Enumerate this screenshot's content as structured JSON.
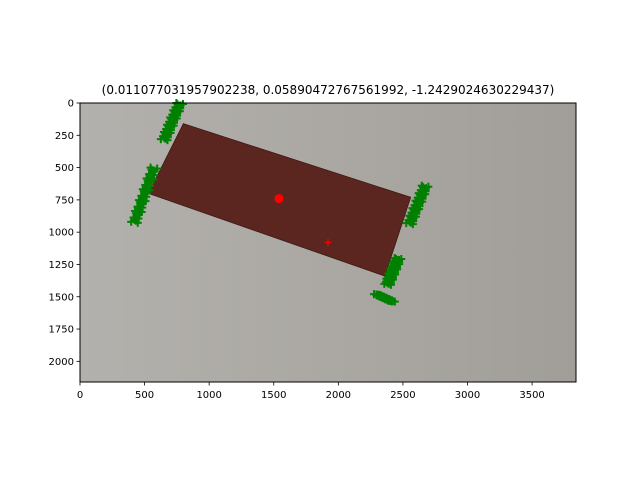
{
  "chart_data": {
    "type": "scatter",
    "title": "(0.011077031957902238, 0.05890472767561992, -1.2429024630229437)",
    "xlabel": "",
    "ylabel": "",
    "xlim": [
      0,
      3840
    ],
    "ylim": [
      2160,
      0
    ],
    "y_inverted": true,
    "grid": false,
    "legend": "none",
    "x_ticks": [
      0,
      500,
      1000,
      1500,
      2000,
      2500,
      3000,
      3500
    ],
    "y_ticks": [
      0,
      250,
      500,
      750,
      1000,
      1250,
      1500,
      1750,
      2000
    ],
    "background_image": {
      "description_colors": {
        "backdrop": "#a9a6a1",
        "box": "#5c2620",
        "box_edge": "#3f1713"
      },
      "box_corners": [
        [
          800,
          160
        ],
        [
          2560,
          730
        ],
        [
          2360,
          1340
        ],
        [
          530,
          700
        ]
      ]
    },
    "series": [
      {
        "marker": "circle",
        "color": "#ff0000",
        "points": [
          [
            1540,
            740
          ]
        ]
      },
      {
        "marker": "plus",
        "color": "#ff0000",
        "points": [
          [
            1920,
            1080
          ]
        ]
      },
      {
        "marker": "plus",
        "color": "#008000",
        "clusters": [
          {
            "from": [
              760,
              0
            ],
            "to": [
              640,
              280
            ]
          },
          {
            "from": [
              560,
              500
            ],
            "to": [
              410,
              920
            ]
          },
          {
            "from": [
              2660,
              640
            ],
            "to": [
              2540,
              930
            ]
          },
          {
            "from": [
              2450,
              1200
            ],
            "to": [
              2370,
              1400
            ]
          },
          {
            "from": [
              2290,
              1480
            ],
            "to": [
              2400,
              1530
            ]
          }
        ]
      }
    ]
  }
}
